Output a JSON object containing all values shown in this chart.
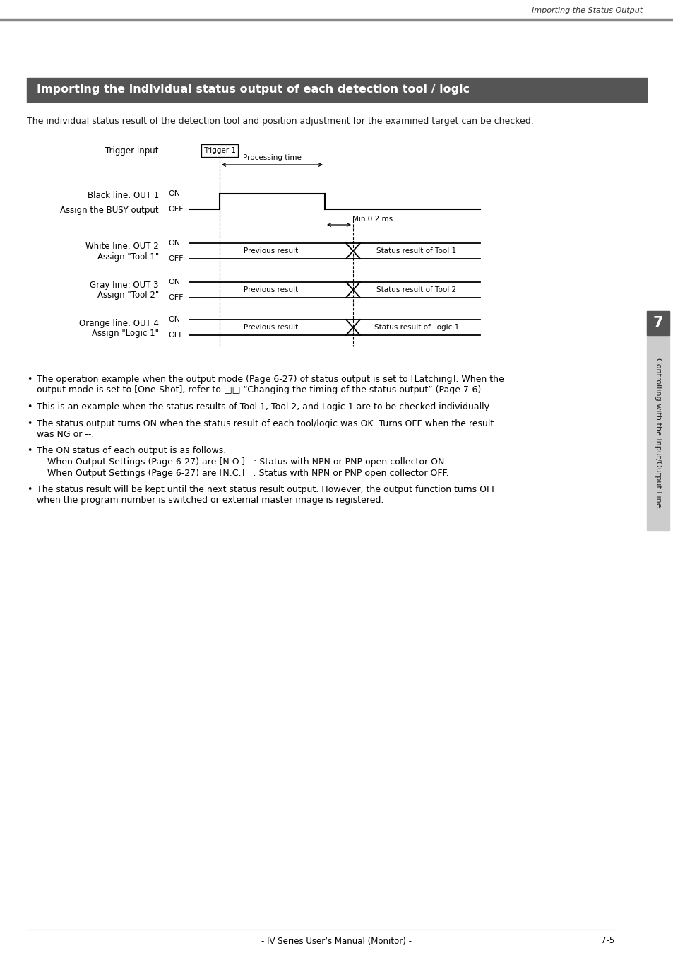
{
  "page_header_right": "Importing the Status Output",
  "header_bar_color": "#888888",
  "section_title": "Importing the individual status output of each detection tool / logic",
  "section_title_bg": "#555555",
  "section_title_color": "#ffffff",
  "intro_text": "The individual status result of the detection tool and position adjustment for the examined target can be checked.",
  "trigger_label": "Trigger input",
  "trigger_box_text": "Trigger 1",
  "processing_time_label": "Processing time",
  "min_02ms_label": "Min 0.2 ms",
  "busy_label1": "Black line: OUT 1",
  "busy_label2": "Assign the BUSY output",
  "status_rows": [
    {
      "label1": "White line: OUT 2",
      "label2": "Assign \"Tool 1\"",
      "prev": "Previous result",
      "status": "Status result of Tool 1"
    },
    {
      "label1": "Gray line: OUT 3",
      "label2": "Assign \"Tool 2\"",
      "prev": "Previous result",
      "status": "Status result of Tool 2"
    },
    {
      "label1": "Orange line: OUT 4",
      "label2": "Assign \"Logic 1\"",
      "prev": "Previous result",
      "status": "Status result of Logic 1"
    }
  ],
  "bullets": [
    [
      "The operation example when the output mode (Page 6-27) of status output is set to [Latching]. When the",
      "output mode is set to [One-Shot], refer to □□ “Changing the timing of the status output” (Page 7-6)."
    ],
    [
      "This is an example when the status results of Tool 1, Tool 2, and Logic 1 are to be checked individually."
    ],
    [
      "The status output turns ON when the status result of each tool/logic was OK. Turns OFF when the result",
      "was NG or --."
    ],
    [
      "The ON status of each output is as follows.",
      "indent:When Output Settings (Page 6-27) are [N.O.]   : Status with NPN or PNP open collector ON.",
      "indent:When Output Settings (Page 6-27) are [N.C.]   : Status with NPN or PNP open collector OFF."
    ],
    [
      "The status result will be kept until the next status result output. However, the output function turns OFF",
      "when the program number is switched or external master image is registered."
    ]
  ],
  "side_tab_text": "Controlling with the Input/Output Line",
  "side_tab_number": "7",
  "footer_center": "- IV Series User’s Manual (Monitor) -",
  "footer_right": "7-5",
  "bg_color": "#ffffff",
  "text_color": "#1a1a1a"
}
